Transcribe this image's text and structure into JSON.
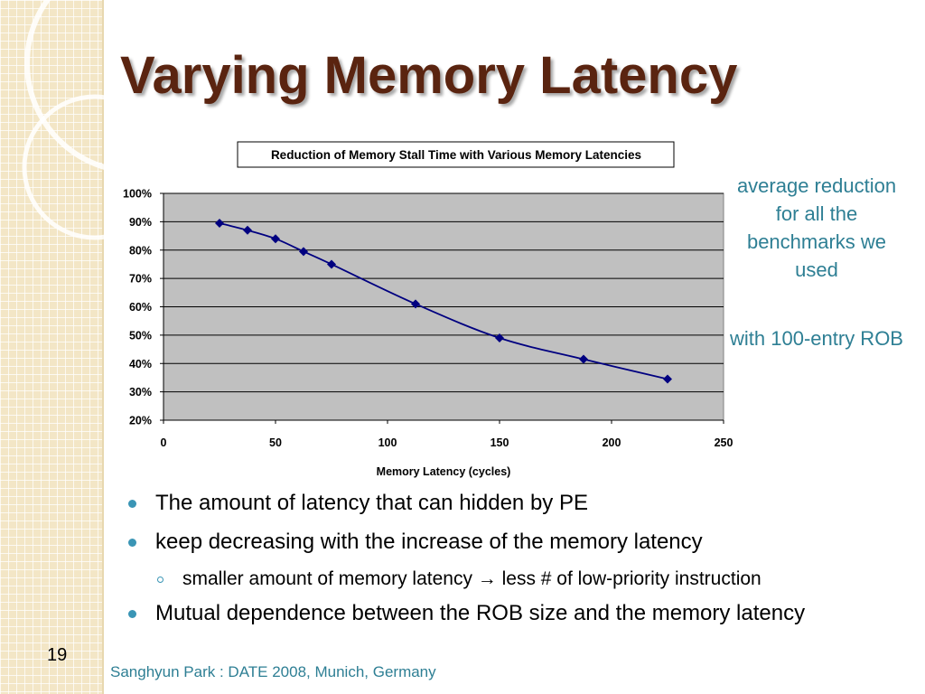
{
  "slide": {
    "title": "Varying Memory Latency",
    "number": "19",
    "footer": "Sanghyun Park : DATE 2008, Munich, Germany"
  },
  "side_notes": [
    {
      "text": "average reduction for all the benchmarks we used"
    },
    {
      "text": "with 100-entry ROB"
    }
  ],
  "bullets": [
    {
      "level": 1,
      "text": "The amount of latency that can  hidden by PE"
    },
    {
      "level": 1,
      "text": "keep decreasing with the increase of the memory latency"
    },
    {
      "level": 2,
      "text": "smaller amount of memory latency → less # of low-priority instruction"
    },
    {
      "level": 1,
      "text": "Mutual dependence between the ROB size and the memory latency"
    }
  ],
  "colors": {
    "title": "#5a2410",
    "accent": "#2e7f94",
    "bullet": "#3a95b5",
    "plot_bg": "#c0c0c0",
    "series": "#000080"
  },
  "chart_data": {
    "type": "line",
    "title": "Reduction of Memory Stall Time with Various Memory Latencies",
    "xlabel": "Memory Latency (cycles)",
    "ylabel": "",
    "xlim": [
      0,
      250
    ],
    "ylim": [
      20,
      100
    ],
    "x_ticks": [
      0,
      50,
      100,
      150,
      200,
      250
    ],
    "x_tick_labels": [
      "0",
      "50",
      "100",
      "150",
      "200",
      "250"
    ],
    "y_ticks": [
      20,
      30,
      40,
      50,
      60,
      70,
      80,
      90,
      100
    ],
    "y_tick_labels": [
      "20%",
      "30%",
      "40%",
      "50%",
      "60%",
      "70%",
      "80%",
      "90%",
      "100%"
    ],
    "grid": "horizontal",
    "legend": "none",
    "series": [
      {
        "x": [
          25,
          37.5,
          50,
          62.5,
          75,
          112.5,
          150,
          187.5,
          225
        ],
        "y": [
          89.5,
          87,
          84,
          79.5,
          75,
          61,
          49,
          41.5,
          34.5
        ]
      }
    ]
  }
}
